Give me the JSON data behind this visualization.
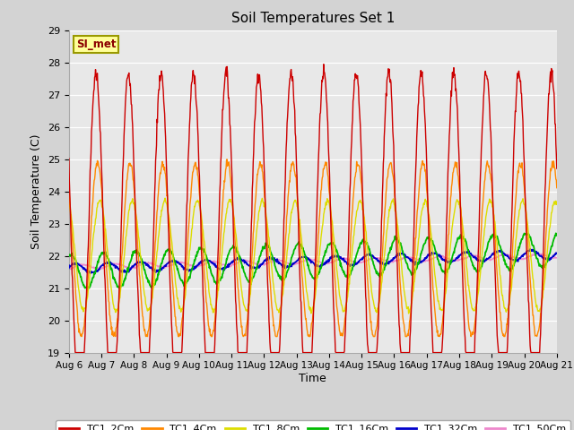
{
  "title": "Soil Temperatures Set 1",
  "xlabel": "Time",
  "ylabel": "Soil Temperature (C)",
  "ylim": [
    19.0,
    29.0
  ],
  "yticks": [
    19.0,
    20.0,
    21.0,
    22.0,
    23.0,
    24.0,
    25.0,
    26.0,
    27.0,
    28.0,
    29.0
  ],
  "site_label": "SI_met",
  "fig_facecolor": "#d3d3d3",
  "ax_facecolor": "#e8e8e8",
  "series_colors": {
    "TC1_2Cm": "#cc0000",
    "TC1_4Cm": "#ff8800",
    "TC1_8Cm": "#dddd00",
    "TC1_16Cm": "#00bb00",
    "TC1_32Cm": "#0000cc",
    "TC1_50Cm": "#ee88cc"
  },
  "xticklabels": [
    "Aug 6",
    "Aug 7",
    "Aug 8",
    "Aug 9",
    "Aug 10",
    "Aug 11",
    "Aug 12",
    "Aug 13",
    "Aug 14",
    "Aug 15",
    "Aug 16",
    "Aug 17",
    "Aug 18",
    "Aug 19",
    "Aug 20",
    "Aug 21"
  ],
  "xtick_positions": [
    0,
    24,
    48,
    72,
    96,
    120,
    144,
    168,
    192,
    216,
    240,
    264,
    288,
    312,
    336,
    360
  ]
}
